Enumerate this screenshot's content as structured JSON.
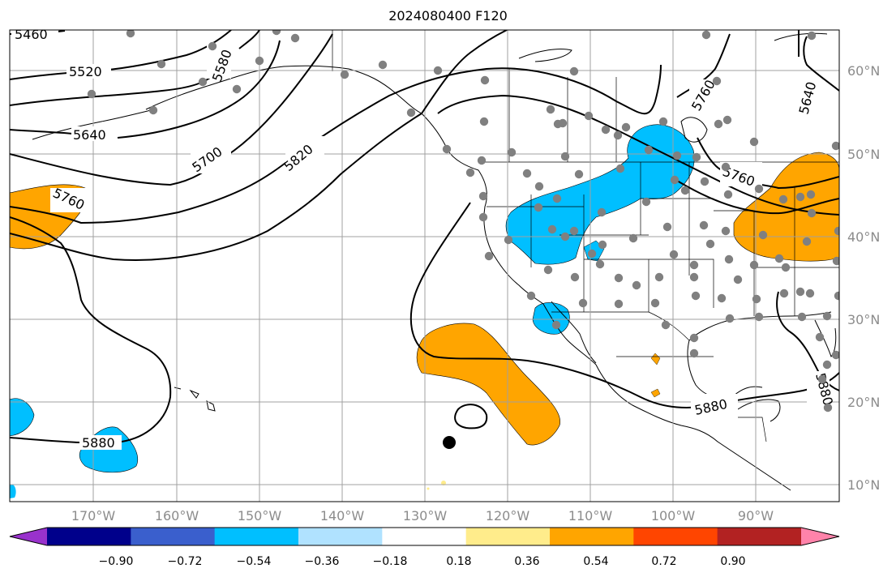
{
  "title": "2024080400 F120",
  "lat_labels": [
    "60°N",
    "50°N",
    "40°N",
    "30°N",
    "20°N",
    "10°N"
  ],
  "lon_labels": [
    "170°W",
    "160°W",
    "150°W",
    "140°W",
    "130°W",
    "120°W",
    "110°W",
    "100°W",
    "90°W"
  ],
  "contour_labels": [
    "5460",
    "5520",
    "5580",
    "5640",
    "5700",
    "5760",
    "5820",
    "5760",
    "5640",
    "5760",
    "5880",
    "5880",
    "5880"
  ],
  "colorbar": {
    "ticks": [
      "−0.90",
      "−0.72",
      "−0.54",
      "−0.36",
      "−0.18",
      "0.18",
      "0.36",
      "0.54",
      "0.72",
      "0.90"
    ],
    "colors": [
      "#9932cc",
      "#00008b",
      "#3a5fcd",
      "#00bfff",
      "#b0e2ff",
      "#ffffff",
      "#ffec8b",
      "#ffa500",
      "#ff4500",
      "#b22222",
      "#ff83aa"
    ]
  },
  "colors": {
    "positive_anomaly": "#ffa500",
    "negative_anomaly": "#00bfff",
    "station": "#808080",
    "grid": "#a0a0a0"
  }
}
